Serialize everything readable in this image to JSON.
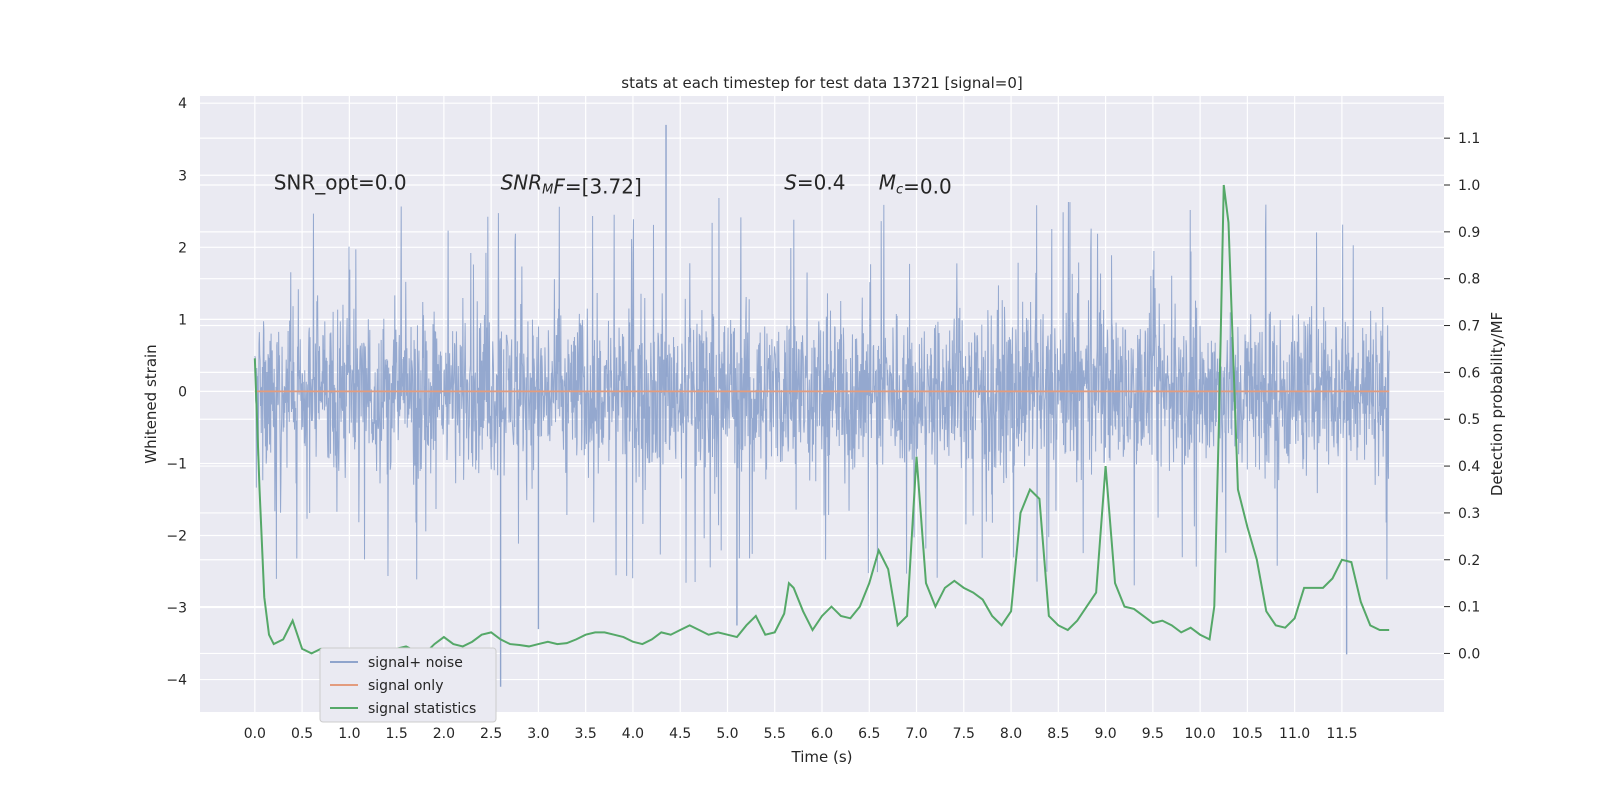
{
  "chart_data": {
    "type": "line",
    "title": "stats at each timestep for test data 13721 [signal=0]",
    "xlabel": "Time (s)",
    "ylabel_left": "Whitened strain",
    "ylabel_right": "Detection probability/MF",
    "xlim": [
      -0.58,
      12.58
    ],
    "ylim_left": [
      -4.45,
      4.1
    ],
    "ylim_right": [
      -0.125,
      1.19
    ],
    "x_ticks": [
      "0.0",
      "0.5",
      "1.0",
      "1.5",
      "2.0",
      "2.5",
      "3.0",
      "3.5",
      "4.0",
      "4.5",
      "5.0",
      "5.5",
      "6.0",
      "6.5",
      "7.0",
      "7.5",
      "8.0",
      "8.5",
      "9.0",
      "9.5",
      "10.0",
      "10.5",
      "11.0",
      "11.5"
    ],
    "y_left_ticks": [
      "4",
      "3",
      "2",
      "1",
      "0",
      "−1",
      "−2",
      "−3",
      "−4"
    ],
    "y_left_tick_values": [
      4,
      3,
      2,
      1,
      0,
      -1,
      -2,
      -3,
      -4
    ],
    "y_right_ticks": [
      "1.1",
      "1.0",
      "0.9",
      "0.8",
      "0.7",
      "0.6",
      "0.5",
      "0.4",
      "0.3",
      "0.2",
      "0.1",
      "0.0"
    ],
    "y_right_tick_values": [
      1.1,
      1.0,
      0.9,
      0.8,
      0.7,
      0.6,
      0.5,
      0.4,
      0.3,
      0.2,
      0.1,
      0.0
    ],
    "grid": true,
    "legend_placement": "lower-left",
    "annotations": [
      {
        "parts": [
          {
            "text": "SNR_opt=0.0",
            "italic": false
          }
        ],
        "x": 0.2,
        "y": 2.9
      },
      {
        "parts": [
          {
            "text": "SNR",
            "italic": true
          },
          {
            "text": "M",
            "italic": true,
            "sub": true
          },
          {
            "text": "F",
            "italic": true
          },
          {
            "text": "=[3.72]",
            "italic": false
          }
        ],
        "x": 2.6,
        "y": 2.9
      },
      {
        "parts": [
          {
            "text": "S",
            "italic": true
          },
          {
            "text": "=0.4",
            "italic": false
          }
        ],
        "x": 5.6,
        "y": 2.9
      },
      {
        "parts": [
          {
            "text": "M",
            "italic": true
          },
          {
            "text": "c",
            "italic": true,
            "sub": true
          },
          {
            "text": "=0.0",
            "italic": false
          }
        ],
        "x": 6.6,
        "y": 2.9
      }
    ],
    "series": [
      {
        "name": "signal+ noise",
        "axis": "left",
        "color": "#8fa4cc",
        "style": "noise",
        "time_range": [
          0.0,
          12.0
        ],
        "typical_max": 1.6,
        "typical_min": -1.8,
        "peak_max": 3.7,
        "peak_min": -4.1
      },
      {
        "name": "signal only",
        "axis": "left",
        "color": "#e39c7e",
        "x": [
          0.0,
          12.0
        ],
        "values": [
          0.0,
          0.0
        ]
      },
      {
        "name": "signal statistics",
        "axis": "right",
        "color": "#55a868",
        "x": [
          0.0,
          0.05,
          0.1,
          0.15,
          0.2,
          0.3,
          0.4,
          0.5,
          0.6,
          0.7,
          0.8,
          0.9,
          1.0,
          1.1,
          1.2,
          1.3,
          1.4,
          1.5,
          1.6,
          1.7,
          1.8,
          1.9,
          2.0,
          2.1,
          2.2,
          2.3,
          2.4,
          2.5,
          2.6,
          2.7,
          2.8,
          2.9,
          3.0,
          3.1,
          3.2,
          3.3,
          3.4,
          3.5,
          3.6,
          3.7,
          3.8,
          3.9,
          4.0,
          4.1,
          4.2,
          4.3,
          4.4,
          4.5,
          4.6,
          4.7,
          4.8,
          4.9,
          5.0,
          5.1,
          5.2,
          5.3,
          5.4,
          5.5,
          5.6,
          5.65,
          5.7,
          5.8,
          5.9,
          6.0,
          6.1,
          6.2,
          6.3,
          6.4,
          6.5,
          6.6,
          6.7,
          6.8,
          6.9,
          7.0,
          7.1,
          7.2,
          7.3,
          7.4,
          7.5,
          7.6,
          7.7,
          7.8,
          7.9,
          8.0,
          8.1,
          8.2,
          8.3,
          8.4,
          8.5,
          8.6,
          8.7,
          8.8,
          8.9,
          9.0,
          9.1,
          9.2,
          9.3,
          9.4,
          9.5,
          9.6,
          9.7,
          9.8,
          9.9,
          10.0,
          10.1,
          10.15,
          10.2,
          10.25,
          10.3,
          10.4,
          10.5,
          10.6,
          10.7,
          10.8,
          10.9,
          11.0,
          11.1,
          11.2,
          11.3,
          11.4,
          11.5,
          11.6,
          11.7,
          11.8,
          11.9,
          12.0
        ],
        "values": [
          0.63,
          0.35,
          0.12,
          0.04,
          0.02,
          0.03,
          0.07,
          0.01,
          0.0,
          0.01,
          0.005,
          0.01,
          0.008,
          0.005,
          0.007,
          0.008,
          0.006,
          0.01,
          0.015,
          0.005,
          0.0,
          0.02,
          0.035,
          0.02,
          0.015,
          0.025,
          0.04,
          0.045,
          0.03,
          0.02,
          0.018,
          0.015,
          0.02,
          0.025,
          0.02,
          0.022,
          0.03,
          0.04,
          0.045,
          0.045,
          0.04,
          0.035,
          0.025,
          0.02,
          0.03,
          0.045,
          0.04,
          0.05,
          0.06,
          0.05,
          0.04,
          0.045,
          0.04,
          0.035,
          0.06,
          0.08,
          0.04,
          0.045,
          0.085,
          0.15,
          0.14,
          0.09,
          0.05,
          0.08,
          0.1,
          0.08,
          0.075,
          0.1,
          0.15,
          0.22,
          0.18,
          0.06,
          0.08,
          0.42,
          0.15,
          0.1,
          0.14,
          0.155,
          0.14,
          0.13,
          0.115,
          0.08,
          0.06,
          0.09,
          0.3,
          0.35,
          0.33,
          0.08,
          0.06,
          0.05,
          0.07,
          0.1,
          0.13,
          0.4,
          0.15,
          0.1,
          0.095,
          0.08,
          0.065,
          0.07,
          0.06,
          0.045,
          0.055,
          0.04,
          0.03,
          0.1,
          0.5,
          1.0,
          0.92,
          0.35,
          0.27,
          0.2,
          0.09,
          0.06,
          0.055,
          0.075,
          0.14,
          0.14,
          0.14,
          0.16,
          0.2,
          0.195,
          0.11,
          0.06,
          0.05,
          0.05
        ]
      }
    ]
  }
}
